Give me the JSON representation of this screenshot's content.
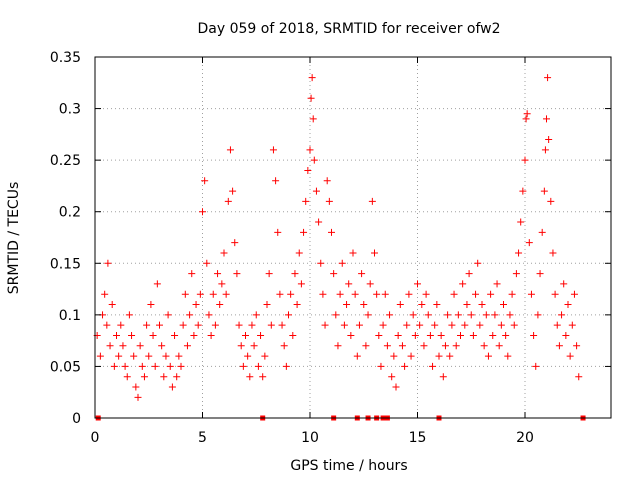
{
  "chart_data": {
    "type": "scatter",
    "title": "Day 059 of 2018, SRMTID for receiver ofw2",
    "xlabel": "GPS time / hours",
    "ylabel": "SRMTID / TECUs",
    "xlim": [
      0,
      24
    ],
    "ylim": [
      0,
      0.35
    ],
    "x_ticks": [
      0,
      5,
      10,
      15,
      20
    ],
    "x_tick_labels": [
      "0",
      "5",
      "10",
      "15",
      "20"
    ],
    "y_ticks": [
      0,
      0.05,
      0.1,
      0.15,
      0.2,
      0.25,
      0.3,
      0.35
    ],
    "y_tick_labels": [
      "0",
      "0.05",
      "0.1",
      "0.15",
      "0.2",
      "0.25",
      "0.3",
      "0.35"
    ],
    "grid": true,
    "series": [
      {
        "name": "SRMTID",
        "marker": "plus",
        "color": "#ff0000",
        "points": [
          [
            0.1,
            0.08
          ],
          [
            0.25,
            0.06
          ],
          [
            0.35,
            0.1
          ],
          [
            0.45,
            0.12
          ],
          [
            0.55,
            0.09
          ],
          [
            0.6,
            0.15
          ],
          [
            0.7,
            0.07
          ],
          [
            0.8,
            0.11
          ],
          [
            0.9,
            0.05
          ],
          [
            1.0,
            0.08
          ],
          [
            1.1,
            0.06
          ],
          [
            1.2,
            0.09
          ],
          [
            1.3,
            0.07
          ],
          [
            1.4,
            0.05
          ],
          [
            1.5,
            0.04
          ],
          [
            1.6,
            0.1
          ],
          [
            1.7,
            0.08
          ],
          [
            1.8,
            0.06
          ],
          [
            1.9,
            0.03
          ],
          [
            2.0,
            0.02
          ],
          [
            2.1,
            0.07
          ],
          [
            2.2,
            0.05
          ],
          [
            2.3,
            0.04
          ],
          [
            2.4,
            0.09
          ],
          [
            2.5,
            0.06
          ],
          [
            2.6,
            0.11
          ],
          [
            2.7,
            0.08
          ],
          [
            2.8,
            0.05
          ],
          [
            2.9,
            0.13
          ],
          [
            3.0,
            0.09
          ],
          [
            3.1,
            0.07
          ],
          [
            3.2,
            0.04
          ],
          [
            3.3,
            0.06
          ],
          [
            3.4,
            0.1
          ],
          [
            3.5,
            0.05
          ],
          [
            3.6,
            0.03
          ],
          [
            3.7,
            0.08
          ],
          [
            3.8,
            0.04
          ],
          [
            3.9,
            0.06
          ],
          [
            4.0,
            0.05
          ],
          [
            4.1,
            0.09
          ],
          [
            4.2,
            0.12
          ],
          [
            4.3,
            0.07
          ],
          [
            4.4,
            0.1
          ],
          [
            4.5,
            0.14
          ],
          [
            4.6,
            0.08
          ],
          [
            4.7,
            0.11
          ],
          [
            4.8,
            0.09
          ],
          [
            4.9,
            0.12
          ],
          [
            5.0,
            0.2
          ],
          [
            5.1,
            0.23
          ],
          [
            5.2,
            0.15
          ],
          [
            5.3,
            0.1
          ],
          [
            5.4,
            0.08
          ],
          [
            5.5,
            0.12
          ],
          [
            5.6,
            0.09
          ],
          [
            5.7,
            0.14
          ],
          [
            5.8,
            0.11
          ],
          [
            5.9,
            0.13
          ],
          [
            6.0,
            0.16
          ],
          [
            6.1,
            0.12
          ],
          [
            6.2,
            0.21
          ],
          [
            6.3,
            0.26
          ],
          [
            6.4,
            0.22
          ],
          [
            6.5,
            0.17
          ],
          [
            6.6,
            0.14
          ],
          [
            6.7,
            0.09
          ],
          [
            6.8,
            0.07
          ],
          [
            6.9,
            0.05
          ],
          [
            7.0,
            0.08
          ],
          [
            7.1,
            0.06
          ],
          [
            7.2,
            0.04
          ],
          [
            7.3,
            0.09
          ],
          [
            7.4,
            0.07
          ],
          [
            7.5,
            0.1
          ],
          [
            7.6,
            0.05
          ],
          [
            7.7,
            0.08
          ],
          [
            7.8,
            0.04
          ],
          [
            7.9,
            0.06
          ],
          [
            8.0,
            0.11
          ],
          [
            8.1,
            0.14
          ],
          [
            8.2,
            0.09
          ],
          [
            8.3,
            0.26
          ],
          [
            8.4,
            0.23
          ],
          [
            8.5,
            0.18
          ],
          [
            8.6,
            0.12
          ],
          [
            8.7,
            0.09
          ],
          [
            8.8,
            0.07
          ],
          [
            8.9,
            0.05
          ],
          [
            9.0,
            0.1
          ],
          [
            9.1,
            0.12
          ],
          [
            9.2,
            0.08
          ],
          [
            9.3,
            0.14
          ],
          [
            9.4,
            0.11
          ],
          [
            9.5,
            0.16
          ],
          [
            9.6,
            0.13
          ],
          [
            9.7,
            0.18
          ],
          [
            9.8,
            0.21
          ],
          [
            9.9,
            0.24
          ],
          [
            10.0,
            0.26
          ],
          [
            10.05,
            0.31
          ],
          [
            10.1,
            0.33
          ],
          [
            10.15,
            0.29
          ],
          [
            10.2,
            0.25
          ],
          [
            10.3,
            0.22
          ],
          [
            10.4,
            0.19
          ],
          [
            10.5,
            0.15
          ],
          [
            10.6,
            0.12
          ],
          [
            10.7,
            0.09
          ],
          [
            10.8,
            0.23
          ],
          [
            10.9,
            0.21
          ],
          [
            11.0,
            0.18
          ],
          [
            11.1,
            0.14
          ],
          [
            11.2,
            0.1
          ],
          [
            11.3,
            0.07
          ],
          [
            11.4,
            0.12
          ],
          [
            11.5,
            0.15
          ],
          [
            11.6,
            0.09
          ],
          [
            11.7,
            0.11
          ],
          [
            11.8,
            0.13
          ],
          [
            11.9,
            0.08
          ],
          [
            12.0,
            0.16
          ],
          [
            12.1,
            0.12
          ],
          [
            12.2,
            0.06
          ],
          [
            12.3,
            0.09
          ],
          [
            12.4,
            0.14
          ],
          [
            12.5,
            0.11
          ],
          [
            12.6,
            0.07
          ],
          [
            12.7,
            0.1
          ],
          [
            12.8,
            0.13
          ],
          [
            12.9,
            0.21
          ],
          [
            13.0,
            0.16
          ],
          [
            13.1,
            0.12
          ],
          [
            13.2,
            0.08
          ],
          [
            13.3,
            0.05
          ],
          [
            13.4,
            0.09
          ],
          [
            13.5,
            0.12
          ],
          [
            13.6,
            0.07
          ],
          [
            13.7,
            0.1
          ],
          [
            13.8,
            0.04
          ],
          [
            13.9,
            0.06
          ],
          [
            14.0,
            0.03
          ],
          [
            14.1,
            0.08
          ],
          [
            14.2,
            0.11
          ],
          [
            14.3,
            0.07
          ],
          [
            14.4,
            0.05
          ],
          [
            14.5,
            0.09
          ],
          [
            14.6,
            0.12
          ],
          [
            14.7,
            0.06
          ],
          [
            14.8,
            0.1
          ],
          [
            14.9,
            0.08
          ],
          [
            15.0,
            0.13
          ],
          [
            15.1,
            0.09
          ],
          [
            15.2,
            0.11
          ],
          [
            15.3,
            0.07
          ],
          [
            15.4,
            0.12
          ],
          [
            15.5,
            0.1
          ],
          [
            15.6,
            0.08
          ],
          [
            15.7,
            0.05
          ],
          [
            15.8,
            0.09
          ],
          [
            15.9,
            0.11
          ],
          [
            16.0,
            0.06
          ],
          [
            16.1,
            0.08
          ],
          [
            16.2,
            0.04
          ],
          [
            16.3,
            0.07
          ],
          [
            16.4,
            0.1
          ],
          [
            16.5,
            0.06
          ],
          [
            16.6,
            0.09
          ],
          [
            16.7,
            0.12
          ],
          [
            16.8,
            0.07
          ],
          [
            16.9,
            0.1
          ],
          [
            17.0,
            0.08
          ],
          [
            17.1,
            0.13
          ],
          [
            17.2,
            0.09
          ],
          [
            17.3,
            0.11
          ],
          [
            17.4,
            0.14
          ],
          [
            17.5,
            0.1
          ],
          [
            17.6,
            0.08
          ],
          [
            17.7,
            0.12
          ],
          [
            17.8,
            0.15
          ],
          [
            17.9,
            0.09
          ],
          [
            18.0,
            0.11
          ],
          [
            18.1,
            0.07
          ],
          [
            18.2,
            0.1
          ],
          [
            18.3,
            0.06
          ],
          [
            18.4,
            0.12
          ],
          [
            18.5,
            0.08
          ],
          [
            18.6,
            0.1
          ],
          [
            18.7,
            0.13
          ],
          [
            18.8,
            0.07
          ],
          [
            18.9,
            0.09
          ],
          [
            19.0,
            0.11
          ],
          [
            19.1,
            0.08
          ],
          [
            19.2,
            0.06
          ],
          [
            19.3,
            0.1
          ],
          [
            19.4,
            0.12
          ],
          [
            19.5,
            0.09
          ],
          [
            19.6,
            0.14
          ],
          [
            19.7,
            0.16
          ],
          [
            19.8,
            0.19
          ],
          [
            19.9,
            0.22
          ],
          [
            20.0,
            0.25
          ],
          [
            20.05,
            0.29
          ],
          [
            20.1,
            0.295
          ],
          [
            20.2,
            0.17
          ],
          [
            20.3,
            0.12
          ],
          [
            20.4,
            0.08
          ],
          [
            20.5,
            0.05
          ],
          [
            20.6,
            0.1
          ],
          [
            20.7,
            0.14
          ],
          [
            20.8,
            0.18
          ],
          [
            20.9,
            0.22
          ],
          [
            20.95,
            0.26
          ],
          [
            21.0,
            0.29
          ],
          [
            21.05,
            0.33
          ],
          [
            21.1,
            0.27
          ],
          [
            21.2,
            0.21
          ],
          [
            21.3,
            0.16
          ],
          [
            21.4,
            0.12
          ],
          [
            21.5,
            0.09
          ],
          [
            21.6,
            0.07
          ],
          [
            21.7,
            0.1
          ],
          [
            21.8,
            0.13
          ],
          [
            21.9,
            0.08
          ],
          [
            22.0,
            0.11
          ],
          [
            22.1,
            0.06
          ],
          [
            22.2,
            0.09
          ],
          [
            22.3,
            0.12
          ],
          [
            22.4,
            0.07
          ],
          [
            22.5,
            0.04
          ]
        ]
      },
      {
        "name": "markers at zero",
        "marker": "square",
        "color": "#ff0000",
        "points": [
          [
            0.15,
            0
          ],
          [
            7.8,
            0
          ],
          [
            11.1,
            0
          ],
          [
            12.2,
            0
          ],
          [
            12.7,
            0
          ],
          [
            13.1,
            0
          ],
          [
            13.4,
            0
          ],
          [
            13.6,
            0
          ],
          [
            16.0,
            0
          ],
          [
            22.7,
            0
          ]
        ]
      }
    ]
  }
}
